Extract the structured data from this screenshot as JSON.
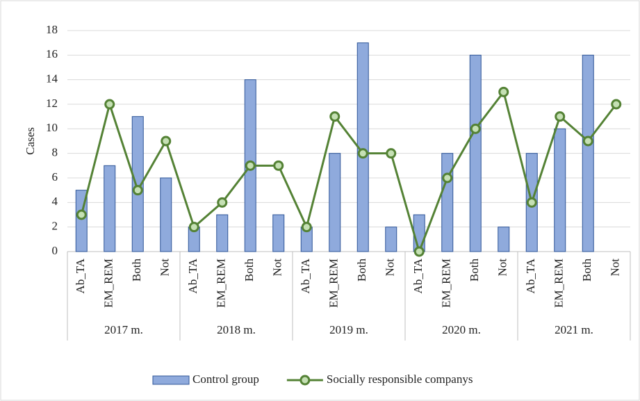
{
  "chart_data": {
    "type": "combo",
    "ylabel": "Cases",
    "groups": [
      "2017 m.",
      "2018 m.",
      "2019 m.",
      "2020 m.",
      "2021 m."
    ],
    "categories": [
      "Ab_TA",
      "EM_REM",
      "Both",
      "Not",
      "Ab_TA",
      "EM_REM",
      "Both",
      "Not",
      "Ab_TA",
      "EM_REM",
      "Both",
      "Not",
      "Ab_TA",
      "EM_REM",
      "Both",
      "Not",
      "Ab_TA",
      "EM_REM",
      "Both",
      "Not"
    ],
    "series": [
      {
        "name": "Control group",
        "type": "bar",
        "color": "#8faadc",
        "values": [
          5,
          7,
          11,
          6,
          2,
          3,
          14,
          3,
          2,
          8,
          17,
          2,
          3,
          8,
          16,
          2,
          8,
          10,
          16,
          0
        ]
      },
      {
        "name": "Socially responsible companys",
        "type": "line",
        "color": "#548235",
        "values": [
          3,
          12,
          5,
          9,
          2,
          4,
          7,
          7,
          2,
          11,
          8,
          8,
          0,
          6,
          10,
          13,
          4,
          11,
          9,
          12
        ]
      }
    ],
    "ylim": [
      0,
      18
    ],
    "yticks": [
      0,
      2,
      4,
      6,
      8,
      10,
      12,
      14,
      16,
      18
    ],
    "grid": true,
    "legend": "bottom"
  }
}
